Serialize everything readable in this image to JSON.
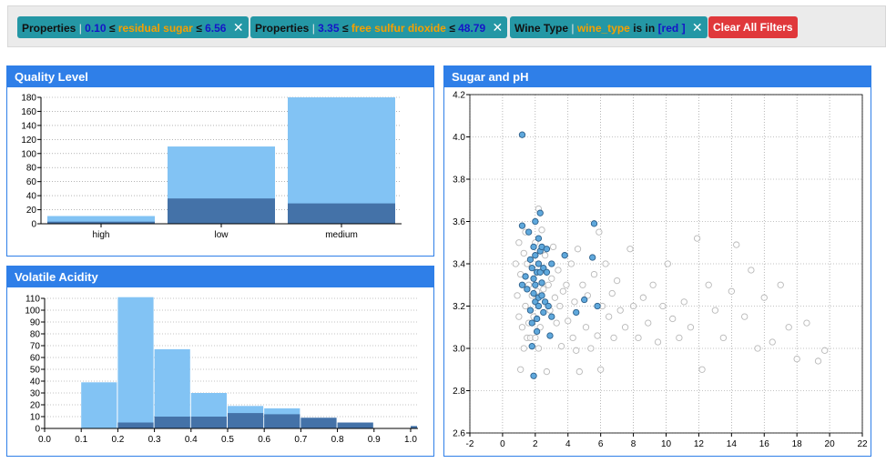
{
  "filters": [
    {
      "prefix": "Properties",
      "sep": "|",
      "low": "0.10",
      "op1": "≤",
      "field": "residual sugar",
      "op2": "≤",
      "high": "6.56",
      "close": "✕"
    },
    {
      "prefix": "Properties",
      "sep": "|",
      "low": "3.35",
      "op1": "≤",
      "field": "free sulfur dioxide",
      "op2": "≤",
      "high": "48.79",
      "close": "✕"
    },
    {
      "prefix": "Wine Type",
      "sep": "|",
      "field": "wine_type",
      "text": "is in",
      "value": "[red ]",
      "close": "✕"
    }
  ],
  "clear_all_label": "Clear All Filters",
  "colors": {
    "header": "#2f7fe8",
    "bar_light": "#82c3f4",
    "bar_dark": "#4472a8",
    "point_selected": "#5fa8dc",
    "point_unselected": "#d0d0d0"
  },
  "chart_data": [
    {
      "title": "Quality Level",
      "type": "bar",
      "categories": [
        "high",
        "low",
        "medium"
      ],
      "series": [
        {
          "values": [
            11,
            110,
            180
          ]
        },
        {
          "values": [
            3,
            36,
            29
          ]
        }
      ],
      "ylim": [
        0,
        180
      ],
      "yticks": [
        0,
        20,
        40,
        60,
        80,
        100,
        120,
        140,
        160,
        180
      ]
    },
    {
      "title": "Volatile Acidity",
      "type": "bar",
      "bins": [
        0.1,
        0.2,
        0.3,
        0.4,
        0.5,
        0.6,
        0.7,
        0.8,
        0.9,
        1.0
      ],
      "series": [
        {
          "values": [
            39,
            111,
            67,
            30,
            19,
            17,
            9,
            5,
            0,
            2
          ]
        },
        {
          "values": [
            0,
            5,
            10,
            10,
            13,
            12,
            9,
            5,
            0,
            2
          ]
        }
      ],
      "xlim": [
        0,
        1.02
      ],
      "ylim": [
        0,
        110
      ],
      "xticks": [
        "0.0",
        "0.1",
        "0.2",
        "0.3",
        "0.4",
        "0.5",
        "0.6",
        "0.7",
        "0.8",
        "0.9",
        "1.0"
      ],
      "yticks": [
        0,
        10,
        20,
        30,
        40,
        50,
        60,
        70,
        80,
        90,
        100,
        110
      ]
    },
    {
      "title": "Sugar and pH",
      "type": "scatter",
      "xlim": [
        -2,
        22
      ],
      "ylim": [
        2.6,
        4.2
      ],
      "xticks": [
        "-2",
        "0",
        "2",
        "4",
        "6",
        "8",
        "10",
        "12",
        "14",
        "16",
        "18",
        "20",
        "22"
      ],
      "yticks": [
        "2.6",
        "2.8",
        "3.0",
        "3.2",
        "3.4",
        "3.6",
        "3.8",
        "4.0",
        "4.2"
      ],
      "series": [
        {
          "name": "selected",
          "points": [
            [
              1.2,
              4.01
            ],
            [
              1.2,
              3.58
            ],
            [
              1.2,
              3.3
            ],
            [
              1.4,
              3.34
            ],
            [
              1.5,
              3.28
            ],
            [
              1.6,
              3.55
            ],
            [
              1.7,
              3.42
            ],
            [
              1.7,
              3.18
            ],
            [
              1.8,
              3.38
            ],
            [
              1.8,
              3.12
            ],
            [
              1.8,
              3.01
            ],
            [
              1.9,
              3.48
            ],
            [
              1.9,
              3.33
            ],
            [
              1.9,
              3.26
            ],
            [
              1.9,
              2.87
            ],
            [
              2.0,
              3.6
            ],
            [
              2.0,
              3.44
            ],
            [
              2.0,
              3.3
            ],
            [
              2.0,
              3.22
            ],
            [
              2.1,
              3.36
            ],
            [
              2.1,
              3.14
            ],
            [
              2.1,
              3.08
            ],
            [
              2.2,
              3.52
            ],
            [
              2.2,
              3.4
            ],
            [
              2.2,
              3.24
            ],
            [
              2.2,
              3.2
            ],
            [
              2.3,
              3.64
            ],
            [
              2.3,
              3.46
            ],
            [
              2.3,
              3.36
            ],
            [
              2.4,
              3.48
            ],
            [
              2.4,
              3.31
            ],
            [
              2.4,
              3.25
            ],
            [
              2.5,
              3.38
            ],
            [
              2.5,
              3.17
            ],
            [
              2.6,
              3.22
            ],
            [
              2.7,
              3.47
            ],
            [
              2.7,
              3.36
            ],
            [
              2.8,
              3.2
            ],
            [
              2.9,
              3.06
            ],
            [
              3.0,
              3.4
            ],
            [
              3.0,
              3.15
            ],
            [
              3.8,
              3.44
            ],
            [
              4.5,
              3.17
            ],
            [
              5.0,
              3.23
            ],
            [
              5.5,
              3.43
            ],
            [
              5.6,
              3.59
            ],
            [
              5.8,
              3.2
            ]
          ]
        },
        {
          "name": "unselected",
          "points": [
            [
              0.8,
              3.4
            ],
            [
              0.9,
              3.25
            ],
            [
              1.0,
              3.5
            ],
            [
              1.0,
              3.15
            ],
            [
              1.1,
              2.9
            ],
            [
              1.1,
              3.35
            ],
            [
              1.2,
              3.1
            ],
            [
              1.3,
              3.0
            ],
            [
              1.3,
              3.45
            ],
            [
              1.4,
              3.2
            ],
            [
              1.4,
              3.55
            ],
            [
              1.5,
              3.05
            ],
            [
              1.5,
              3.4
            ],
            [
              1.6,
              3.12
            ],
            [
              1.6,
              3.3
            ],
            [
              1.7,
              3.05
            ],
            [
              1.8,
              3.25
            ],
            [
              1.9,
              3.15
            ],
            [
              2.0,
              3.05
            ],
            [
              2.0,
              3.5
            ],
            [
              2.1,
              3.27
            ],
            [
              2.2,
              3.66
            ],
            [
              2.2,
              3.0
            ],
            [
              2.3,
              3.1
            ],
            [
              2.4,
              3.56
            ],
            [
              2.5,
              3.28
            ],
            [
              2.6,
              3.44
            ],
            [
              2.7,
              2.89
            ],
            [
              2.8,
              3.3
            ],
            [
              2.9,
              3.18
            ],
            [
              3.0,
              3.33
            ],
            [
              3.1,
              3.48
            ],
            [
              3.2,
              3.24
            ],
            [
              3.3,
              3.12
            ],
            [
              3.4,
              3.37
            ],
            [
              3.5,
              3.2
            ],
            [
              3.6,
              3.01
            ],
            [
              3.7,
              3.27
            ],
            [
              3.9,
              3.3
            ],
            [
              4.0,
              3.13
            ],
            [
              4.2,
              3.4
            ],
            [
              4.3,
              3.05
            ],
            [
              4.4,
              3.22
            ],
            [
              4.5,
              2.99
            ],
            [
              4.6,
              3.47
            ],
            [
              4.7,
              2.89
            ],
            [
              4.9,
              3.3
            ],
            [
              5.1,
              3.1
            ],
            [
              5.2,
              3.25
            ],
            [
              5.4,
              3.0
            ],
            [
              5.6,
              3.35
            ],
            [
              5.8,
              3.06
            ],
            [
              5.9,
              3.55
            ],
            [
              6.0,
              2.9
            ],
            [
              6.1,
              3.2
            ],
            [
              6.3,
              3.4
            ],
            [
              6.5,
              3.15
            ],
            [
              6.7,
              3.26
            ],
            [
              6.8,
              3.05
            ],
            [
              7.0,
              3.32
            ],
            [
              7.2,
              3.18
            ],
            [
              7.5,
              3.1
            ],
            [
              7.8,
              3.47
            ],
            [
              8.0,
              3.2
            ],
            [
              8.3,
              3.05
            ],
            [
              8.6,
              3.24
            ],
            [
              8.9,
              3.12
            ],
            [
              9.2,
              3.3
            ],
            [
              9.5,
              3.03
            ],
            [
              9.8,
              3.2
            ],
            [
              10.1,
              3.4
            ],
            [
              10.4,
              3.14
            ],
            [
              10.8,
              3.05
            ],
            [
              11.1,
              3.22
            ],
            [
              11.5,
              3.1
            ],
            [
              11.9,
              3.52
            ],
            [
              12.2,
              2.9
            ],
            [
              12.6,
              3.3
            ],
            [
              13.0,
              3.18
            ],
            [
              13.5,
              3.05
            ],
            [
              14.0,
              3.27
            ],
            [
              14.3,
              3.49
            ],
            [
              14.8,
              3.15
            ],
            [
              15.2,
              3.37
            ],
            [
              15.6,
              3.0
            ],
            [
              16.0,
              3.24
            ],
            [
              16.5,
              3.03
            ],
            [
              17.0,
              3.3
            ],
            [
              17.5,
              3.1
            ],
            [
              18.0,
              2.95
            ],
            [
              18.6,
              3.12
            ],
            [
              19.3,
              2.94
            ],
            [
              19.7,
              2.99
            ]
          ]
        }
      ]
    }
  ]
}
